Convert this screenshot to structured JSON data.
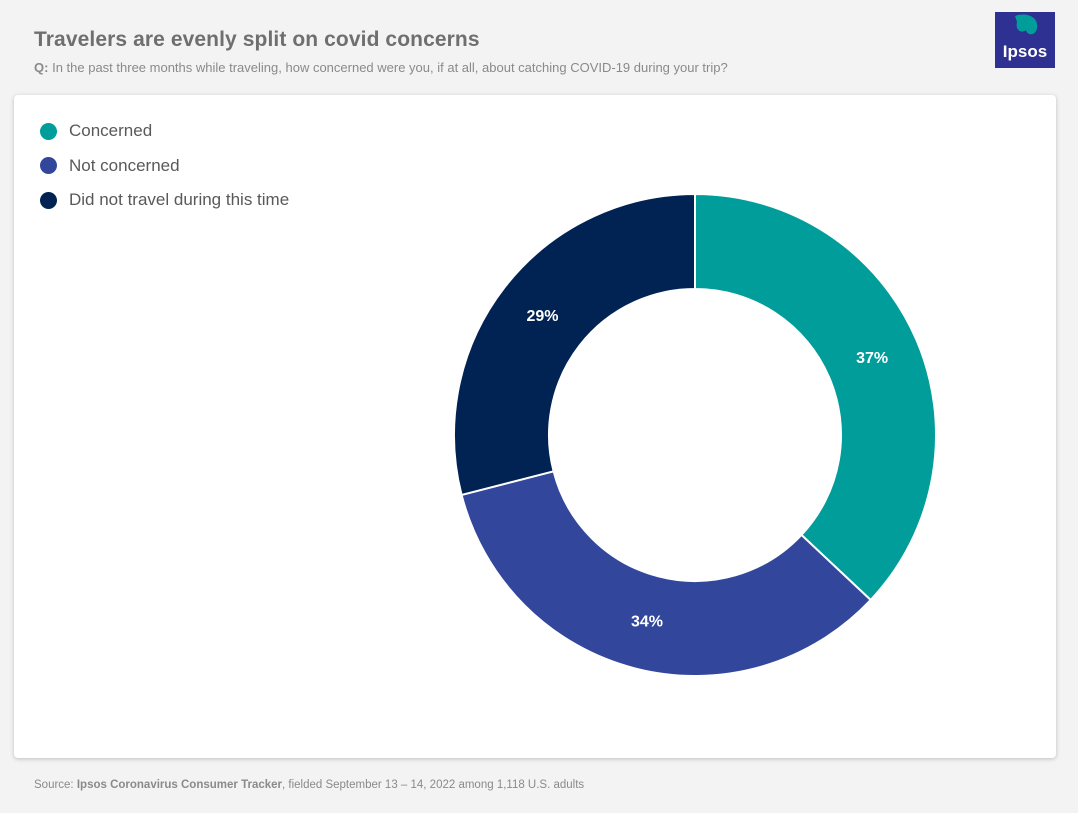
{
  "header": {
    "title": "Travelers are evenly split on covid concerns",
    "question_prefix": "Q:",
    "question_text": "In the past three months while traveling, how concerned were you, if at all, about catching COVID-19 during your trip?"
  },
  "logo": {
    "text": "Ipsos",
    "color": "#2e3192",
    "accent": "#009d9a"
  },
  "chart_data": {
    "type": "pie",
    "variant": "donut",
    "categories": [
      "Concerned",
      "Not concerned",
      "Did not travel during this time"
    ],
    "values": [
      37,
      34,
      29
    ],
    "value_labels": [
      "37%",
      "34%",
      "29%"
    ],
    "colors": [
      "#009d9a",
      "#32479c",
      "#002353"
    ],
    "start": "12 o'clock, clockwise",
    "legend_placement": "top-left"
  },
  "footer": {
    "source_prefix": "Source:",
    "source_name": "Ipsos Coronavirus Consumer Tracker",
    "source_suffix": ", fielded September 13 – 14, 2022 among 1,118 U.S. adults"
  }
}
